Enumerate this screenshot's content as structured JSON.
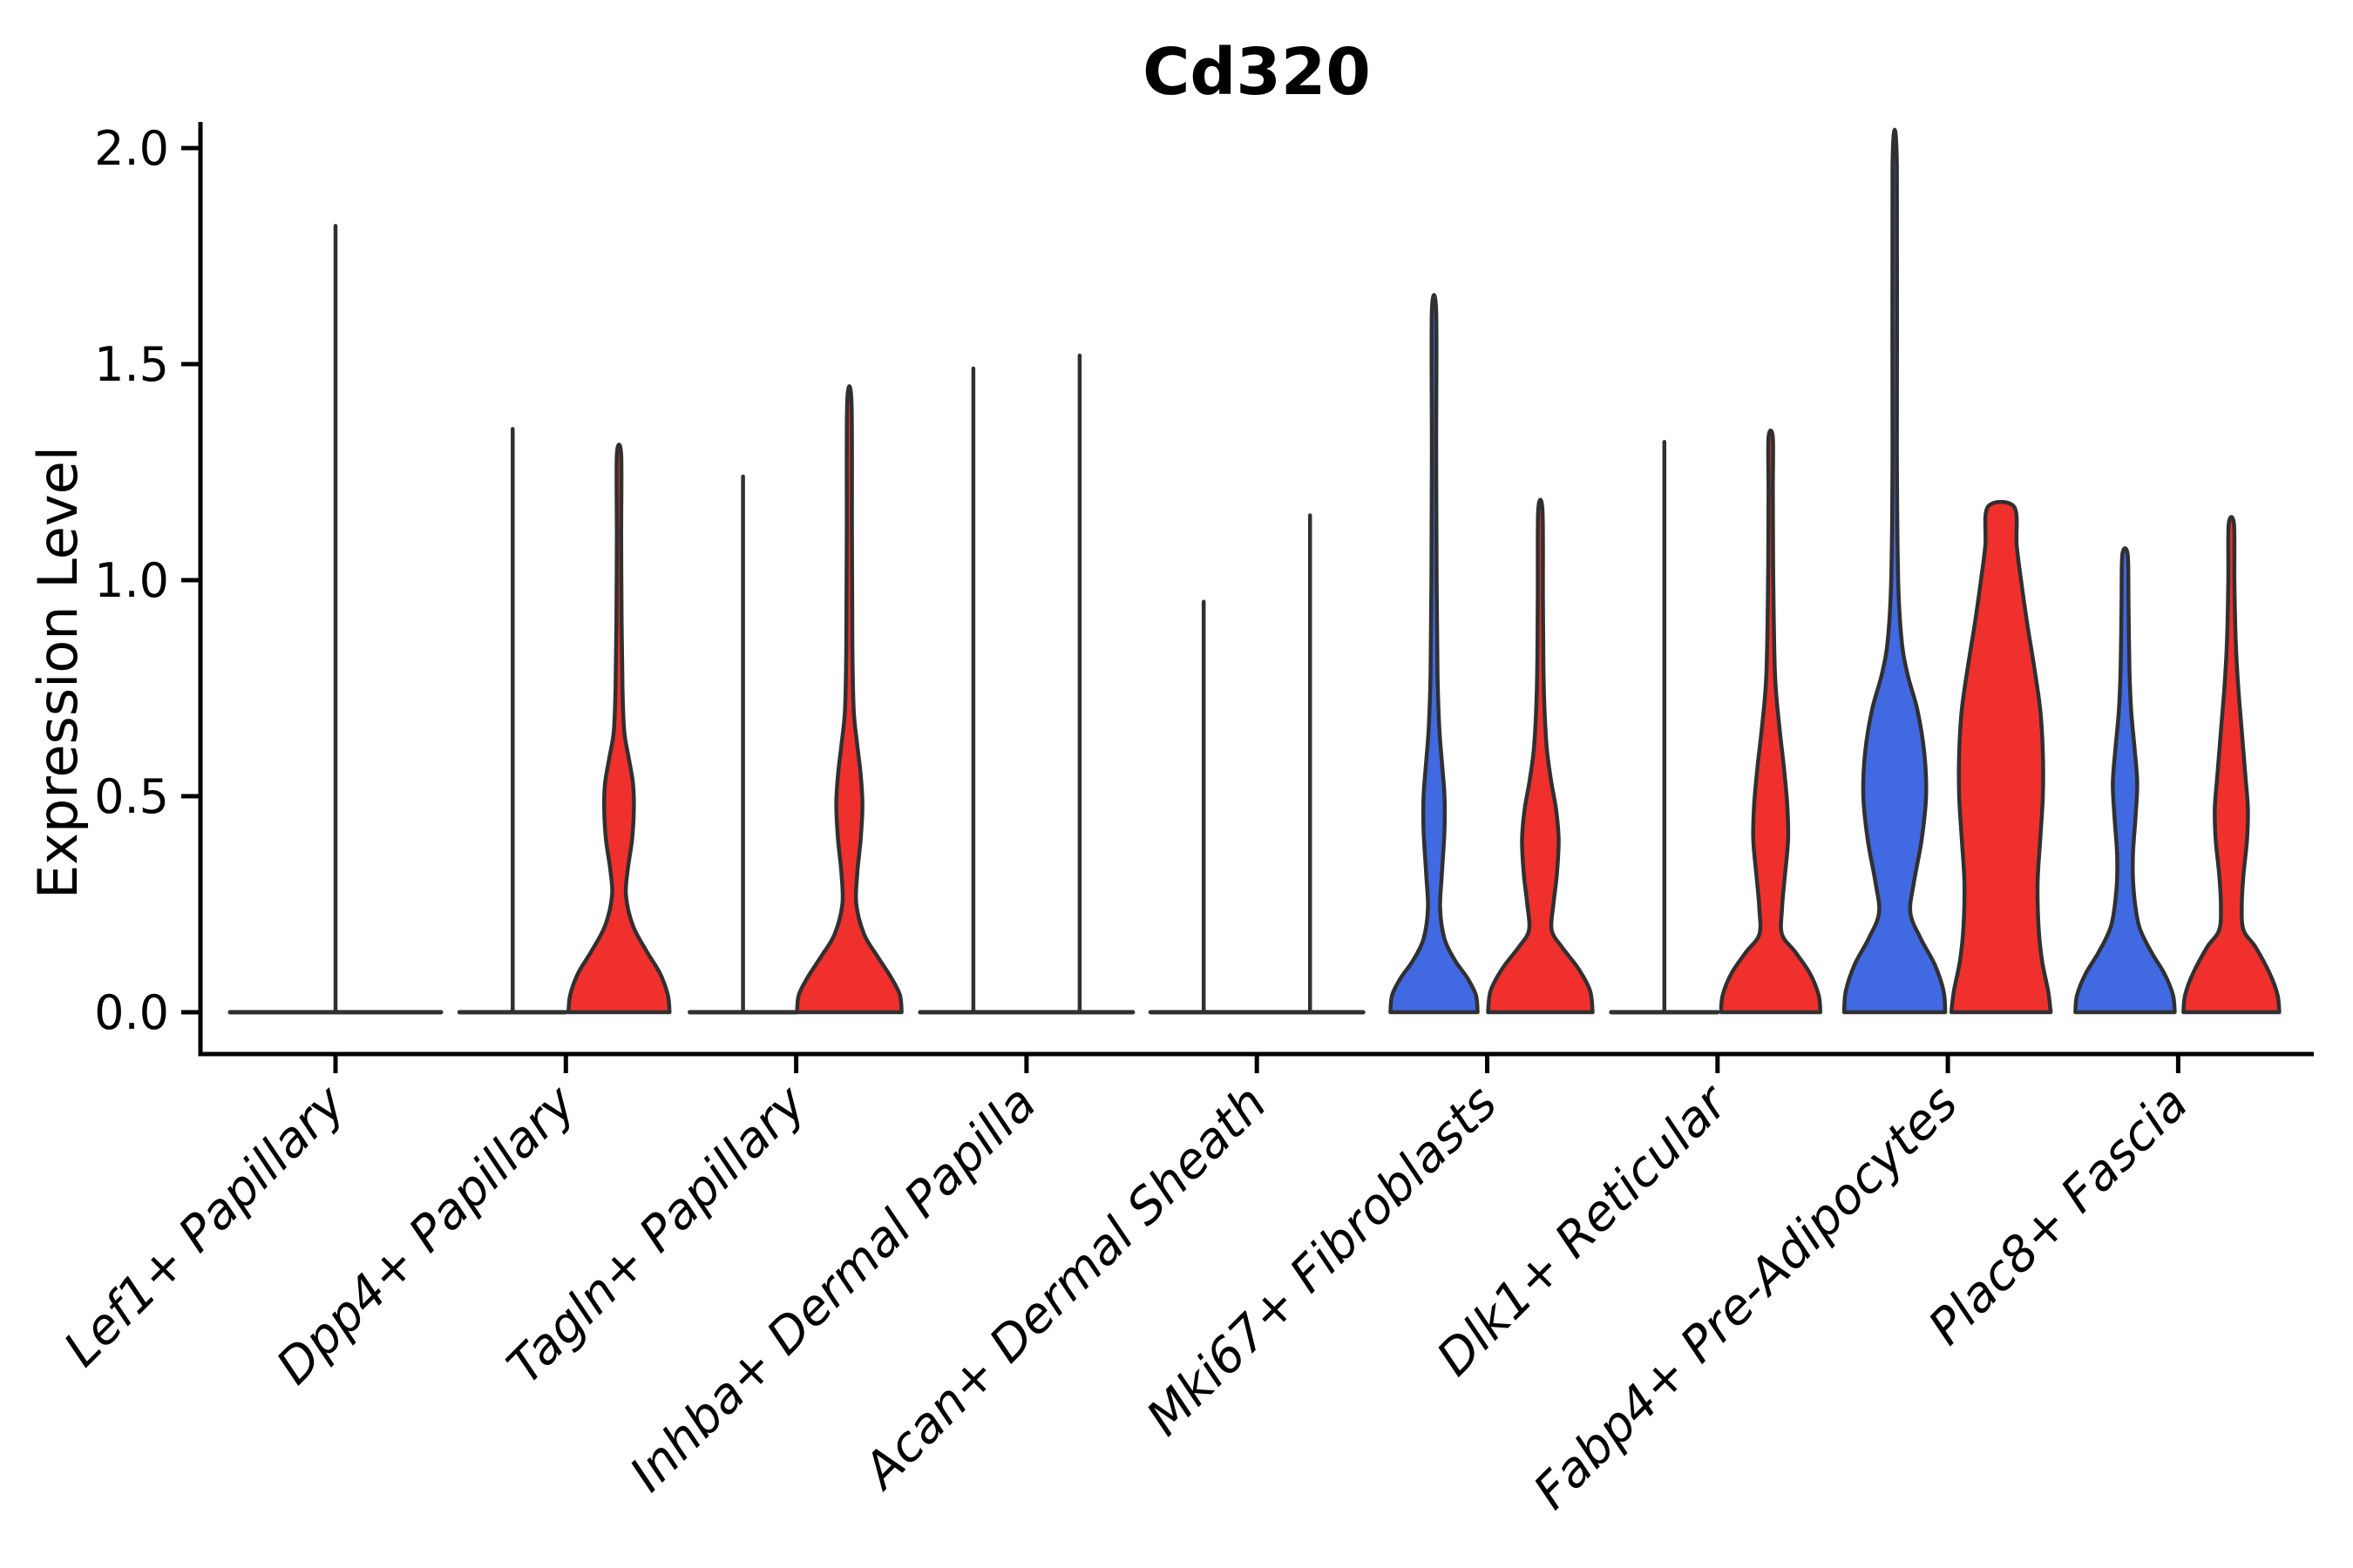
{
  "title": "Cd320",
  "chart_data": {
    "type": "violin",
    "title": "Cd320",
    "xlabel": "",
    "ylabel": "Expression Level",
    "ylim": [
      0,
      2.0
    ],
    "yticks": [
      "0.0",
      "0.5",
      "1.0",
      "1.5",
      "2.0"
    ],
    "ytick_values": [
      0.0,
      0.5,
      1.0,
      1.5,
      2.0
    ],
    "grid": false,
    "legend_position": "none",
    "colors": {
      "blue": "#4169E1",
      "red": "#F0302D",
      "outline": "#303030"
    },
    "categories": [
      {
        "label": "Lef1+ Papillary",
        "violins": [
          {
            "group": "none",
            "side": "center",
            "width": "full",
            "shape": "flat",
            "spike_top": 1.82
          }
        ]
      },
      {
        "label": "Dpp4+ Papillary",
        "violins": [
          {
            "group": "none",
            "side": "left",
            "width": "half",
            "shape": "flat",
            "spike_top": 1.35
          },
          {
            "group": "red",
            "side": "right",
            "width": "half",
            "shape": "density",
            "spike_top": 1.29,
            "profile": [
              [
                0,
                58
              ],
              [
                0.04,
                56
              ],
              [
                0.09,
                47
              ],
              [
                0.14,
                32
              ],
              [
                0.2,
                16
              ],
              [
                0.27,
                8
              ],
              [
                0.33,
                10
              ],
              [
                0.4,
                15
              ],
              [
                0.47,
                17
              ],
              [
                0.53,
                16
              ],
              [
                0.59,
                11
              ],
              [
                0.65,
                6
              ],
              [
                0.75,
                4
              ],
              [
                0.9,
                3
              ],
              [
                1.1,
                2.5
              ],
              [
                1.29,
                2.5
              ]
            ]
          }
        ]
      },
      {
        "label": "Tagln+ Papillary",
        "violins": [
          {
            "group": "none",
            "side": "left",
            "width": "half",
            "shape": "flat",
            "spike_top": 1.24
          },
          {
            "group": "red",
            "side": "right",
            "width": "half",
            "shape": "density",
            "spike_top": 1.41,
            "profile": [
              [
                0,
                60
              ],
              [
                0.04,
                58
              ],
              [
                0.08,
                48
              ],
              [
                0.13,
                32
              ],
              [
                0.18,
                17
              ],
              [
                0.25,
                8
              ],
              [
                0.32,
                9
              ],
              [
                0.4,
                13
              ],
              [
                0.48,
                15
              ],
              [
                0.55,
                13
              ],
              [
                0.62,
                9
              ],
              [
                0.7,
                5
              ],
              [
                0.85,
                3.5
              ],
              [
                1.1,
                3
              ],
              [
                1.41,
                2.5
              ]
            ]
          }
        ]
      },
      {
        "label": "Inhba+ Dermal Papilla",
        "violins": [
          {
            "group": "none",
            "side": "left",
            "width": "half",
            "shape": "flat",
            "spike_top": 1.49
          },
          {
            "group": "none",
            "side": "right",
            "width": "half",
            "shape": "flat",
            "spike_top": 1.52
          }
        ]
      },
      {
        "label": "Acan+ Dermal Sheath",
        "violins": [
          {
            "group": "none",
            "side": "left",
            "width": "half",
            "shape": "flat",
            "spike_top": 0.95
          },
          {
            "group": "none",
            "side": "right",
            "width": "half",
            "shape": "flat",
            "spike_top": 1.15
          }
        ]
      },
      {
        "label": "Mki67+ Fibroblasts",
        "violins": [
          {
            "group": "blue",
            "side": "left",
            "width": "half",
            "shape": "density",
            "spike_top": 1.62,
            "profile": [
              [
                0,
                50
              ],
              [
                0.04,
                48
              ],
              [
                0.08,
                38
              ],
              [
                0.12,
                24
              ],
              [
                0.17,
                12
              ],
              [
                0.24,
                7
              ],
              [
                0.32,
                9
              ],
              [
                0.42,
                12
              ],
              [
                0.5,
                12
              ],
              [
                0.58,
                9
              ],
              [
                0.66,
                6
              ],
              [
                0.78,
                4
              ],
              [
                1.0,
                3
              ],
              [
                1.3,
                2.5
              ],
              [
                1.62,
                2.5
              ]
            ]
          },
          {
            "group": "red",
            "side": "right",
            "width": "half",
            "shape": "density",
            "spike_top": 1.16,
            "profile": [
              [
                0,
                60
              ],
              [
                0.05,
                57
              ],
              [
                0.1,
                44
              ],
              [
                0.15,
                25
              ],
              [
                0.19,
                13
              ],
              [
                0.25,
                15
              ],
              [
                0.32,
                19
              ],
              [
                0.4,
                21
              ],
              [
                0.47,
                18
              ],
              [
                0.54,
                12
              ],
              [
                0.62,
                7
              ],
              [
                0.75,
                4
              ],
              [
                0.95,
                3
              ],
              [
                1.16,
                2.5
              ]
            ]
          }
        ]
      },
      {
        "label": "Dlk1+ Reticular",
        "violins": [
          {
            "group": "none",
            "side": "left",
            "width": "half",
            "shape": "flat",
            "spike_top": 1.32
          },
          {
            "group": "red",
            "side": "right",
            "width": "half",
            "shape": "density",
            "spike_top": 1.33,
            "profile": [
              [
                0,
                57
              ],
              [
                0.04,
                55
              ],
              [
                0.09,
                45
              ],
              [
                0.14,
                28
              ],
              [
                0.18,
                13
              ],
              [
                0.24,
                13
              ],
              [
                0.31,
                16
              ],
              [
                0.4,
                20
              ],
              [
                0.48,
                19
              ],
              [
                0.57,
                15
              ],
              [
                0.66,
                10
              ],
              [
                0.78,
                5
              ],
              [
                1.0,
                3
              ],
              [
                1.2,
                2.5
              ],
              [
                1.33,
                2.5
              ]
            ]
          }
        ]
      },
      {
        "label": "Fabp4+ Pre-Adipocytes",
        "violins": [
          {
            "group": "blue",
            "side": "left",
            "width": "half",
            "shape": "density",
            "spike_top": 1.96,
            "profile": [
              [
                0,
                58
              ],
              [
                0.05,
                56
              ],
              [
                0.11,
                46
              ],
              [
                0.17,
                30
              ],
              [
                0.23,
                18
              ],
              [
                0.3,
                22
              ],
              [
                0.4,
                31
              ],
              [
                0.5,
                36
              ],
              [
                0.6,
                34
              ],
              [
                0.7,
                26
              ],
              [
                0.78,
                15
              ],
              [
                0.86,
                8
              ],
              [
                1.0,
                4
              ],
              [
                1.3,
                2.5
              ],
              [
                1.96,
                2.5
              ]
            ]
          },
          {
            "group": "red",
            "side": "right",
            "width": "half",
            "shape": "density",
            "spike_top": 1.17,
            "flat_top": true,
            "profile": [
              [
                0,
                57
              ],
              [
                0.05,
                54
              ],
              [
                0.12,
                47
              ],
              [
                0.2,
                43
              ],
              [
                0.3,
                42
              ],
              [
                0.4,
                45
              ],
              [
                0.5,
                48
              ],
              [
                0.6,
                48
              ],
              [
                0.7,
                45
              ],
              [
                0.8,
                38
              ],
              [
                0.9,
                30
              ],
              [
                1.0,
                23
              ],
              [
                1.08,
                18
              ],
              [
                1.17,
                15
              ]
            ]
          }
        ]
      },
      {
        "label": "Plac8+ Fascia",
        "violins": [
          {
            "group": "blue",
            "side": "left",
            "width": "half",
            "shape": "density",
            "spike_top": 1.06,
            "profile": [
              [
                0,
                57
              ],
              [
                0.04,
                55
              ],
              [
                0.09,
                45
              ],
              [
                0.14,
                30
              ],
              [
                0.2,
                16
              ],
              [
                0.28,
                10
              ],
              [
                0.36,
                9
              ],
              [
                0.45,
                12
              ],
              [
                0.53,
                14
              ],
              [
                0.61,
                11
              ],
              [
                0.7,
                7
              ],
              [
                0.8,
                5
              ],
              [
                0.95,
                4
              ],
              [
                1.06,
                3
              ]
            ]
          },
          {
            "group": "red",
            "side": "right",
            "width": "half",
            "shape": "density",
            "spike_top": 1.13,
            "profile": [
              [
                0,
                55
              ],
              [
                0.04,
                53
              ],
              [
                0.09,
                44
              ],
              [
                0.15,
                28
              ],
              [
                0.19,
                14
              ],
              [
                0.25,
                12
              ],
              [
                0.32,
                14
              ],
              [
                0.4,
                18
              ],
              [
                0.47,
                19
              ],
              [
                0.55,
                16
              ],
              [
                0.65,
                12
              ],
              [
                0.75,
                8
              ],
              [
                0.86,
                5
              ],
              [
                1.0,
                3.5
              ],
              [
                1.13,
                3
              ]
            ]
          }
        ]
      }
    ]
  }
}
